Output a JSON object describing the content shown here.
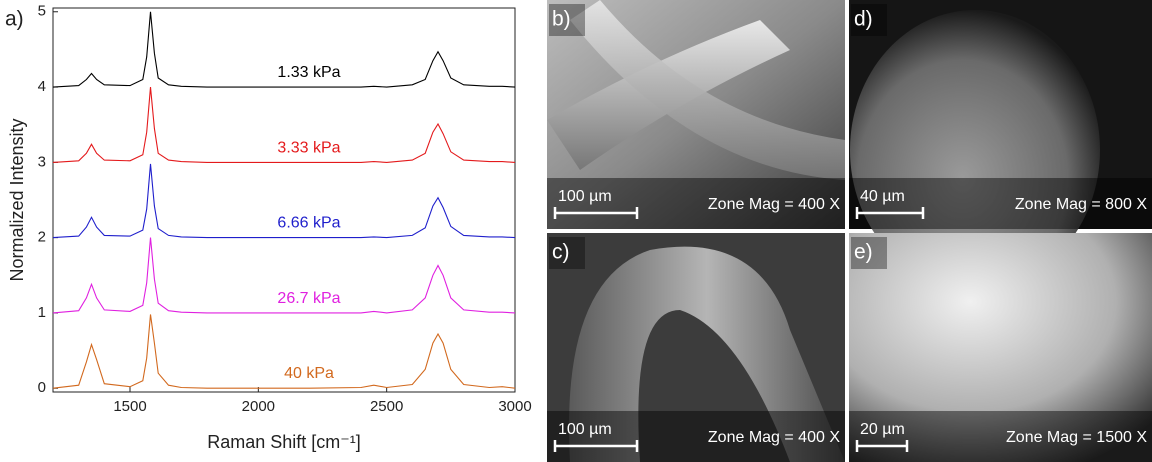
{
  "chart_data": {
    "type": "line",
    "panel_label": "a)",
    "x_label": "Raman Shift [cm⁻¹]",
    "y_label": "Normalized Intensity",
    "x": [
      1200,
      1300,
      1330,
      1350,
      1370,
      1400,
      1500,
      1550,
      1565,
      1580,
      1595,
      1610,
      1650,
      1700,
      1800,
      2000,
      2200,
      2400,
      2450,
      2500,
      2600,
      2650,
      2680,
      2700,
      2720,
      2750,
      2800,
      2900,
      2950,
      3000
    ],
    "series": [
      {
        "name": "1.33 kPa",
        "color": "#000000",
        "values": [
          4.0,
          4.02,
          4.1,
          4.18,
          4.1,
          4.03,
          4.02,
          4.1,
          4.4,
          5.0,
          4.45,
          4.12,
          4.03,
          4.01,
          4.0,
          4.0,
          4.0,
          4.0,
          4.01,
          4.0,
          4.03,
          4.1,
          4.35,
          4.47,
          4.35,
          4.12,
          4.03,
          4.01,
          4.01,
          4.0
        ]
      },
      {
        "name": "3.33 kPa",
        "color": "#e41a1c",
        "values": [
          3.0,
          3.02,
          3.12,
          3.24,
          3.12,
          3.03,
          3.02,
          3.1,
          3.4,
          4.0,
          3.45,
          3.12,
          3.03,
          3.01,
          3.0,
          3.0,
          3.0,
          3.0,
          3.01,
          3.0,
          3.03,
          3.12,
          3.4,
          3.51,
          3.38,
          3.14,
          3.03,
          3.01,
          3.01,
          3.0
        ]
      },
      {
        "name": "6.66 kPa",
        "color": "#1f1fcc",
        "values": [
          2.0,
          2.02,
          2.14,
          2.27,
          2.14,
          2.03,
          2.02,
          2.1,
          2.38,
          2.98,
          2.42,
          2.12,
          2.03,
          2.01,
          2.0,
          2.0,
          2.0,
          2.0,
          2.01,
          2.0,
          2.03,
          2.13,
          2.42,
          2.53,
          2.4,
          2.15,
          2.03,
          2.01,
          2.01,
          2.0
        ]
      },
      {
        "name": "26.7 kPa",
        "color": "#e020e0",
        "values": [
          1.0,
          1.03,
          1.2,
          1.38,
          1.2,
          1.04,
          1.02,
          1.1,
          1.4,
          2.0,
          1.45,
          1.13,
          1.03,
          1.01,
          1.0,
          1.0,
          1.0,
          1.0,
          1.02,
          1.0,
          1.04,
          1.2,
          1.5,
          1.63,
          1.5,
          1.2,
          1.04,
          1.01,
          1.01,
          1.0
        ]
      },
      {
        "name": "40 kPa",
        "color": "#d2691e",
        "values": [
          0.0,
          0.04,
          0.35,
          0.58,
          0.38,
          0.06,
          0.02,
          0.1,
          0.4,
          0.98,
          0.6,
          0.2,
          0.04,
          0.01,
          0.0,
          0.0,
          0.0,
          0.01,
          0.04,
          0.01,
          0.05,
          0.25,
          0.6,
          0.72,
          0.6,
          0.25,
          0.05,
          0.01,
          0.02,
          0.0
        ]
      }
    ],
    "xlim": [
      1200,
      3000
    ],
    "ylim": [
      -0.05,
      5.05
    ],
    "xticks": [
      1500,
      2000,
      2500,
      3000
    ],
    "yticks": [
      0,
      1,
      2,
      3,
      4,
      5
    ]
  },
  "panels": [
    {
      "label": "b)",
      "scale": "100 µm",
      "mag": "Zone Mag = 400 X"
    },
    {
      "label": "d)",
      "scale": "40 µm",
      "mag": "Zone Mag = 800 X"
    },
    {
      "label": "c)",
      "scale": "100 µm",
      "mag": "Zone Mag = 400 X"
    },
    {
      "label": "e)",
      "scale": "20 µm",
      "mag": "Zone Mag = 1500 X"
    }
  ]
}
